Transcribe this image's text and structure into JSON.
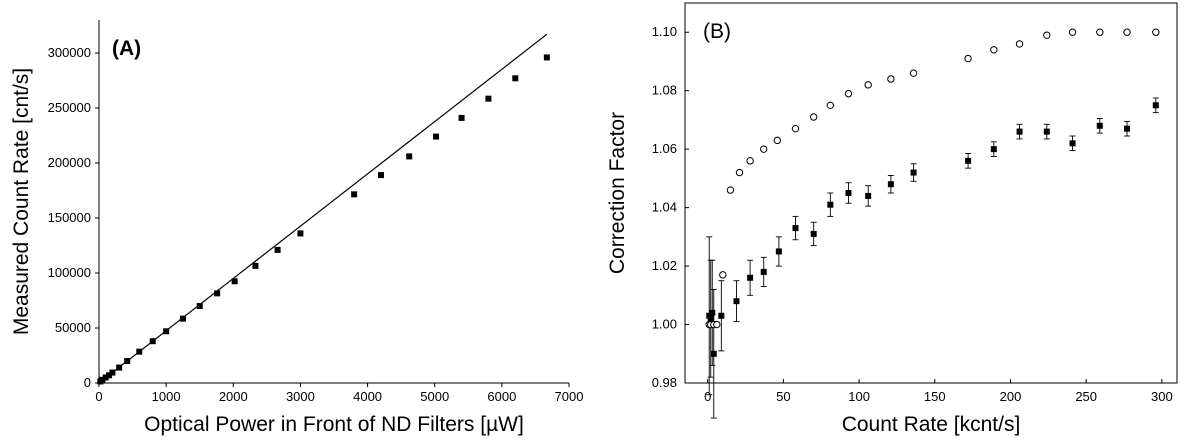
{
  "chart_data": [
    {
      "type": "scatter",
      "panel_label": "(A)",
      "xlabel": "Optical Power in Front of ND Filters [µW]",
      "ylabel": "Measured Count Rate [cnt/s]",
      "xlim": [
        0,
        7000
      ],
      "ylim": [
        0,
        330000
      ],
      "x_ticks": [
        0,
        1000,
        2000,
        3000,
        4000,
        5000,
        6000,
        7000
      ],
      "y_ticks": [
        0,
        50000,
        100000,
        150000,
        200000,
        250000,
        300000
      ],
      "grid": false,
      "series": [
        {
          "marker": "square-filled",
          "color": "#000000",
          "points": [
            [
              20,
              1400
            ],
            [
              50,
              2900
            ],
            [
              100,
              5000
            ],
            [
              150,
              7000
            ],
            [
              200,
              9500
            ],
            [
              300,
              14000
            ],
            [
              420,
              20000
            ],
            [
              600,
              28500
            ],
            [
              800,
              38000
            ],
            [
              1000,
              47000
            ],
            [
              1250,
              58500
            ],
            [
              1500,
              70000
            ],
            [
              1760,
              81500
            ],
            [
              2020,
              92500
            ],
            [
              2330,
              106500
            ],
            [
              2660,
              121000
            ],
            [
              3000,
              136000
            ],
            [
              3800,
              171500
            ],
            [
              4200,
              189000
            ],
            [
              4620,
              206000
            ],
            [
              5020,
              224000
            ],
            [
              5400,
              241000
            ],
            [
              5800,
              258500
            ],
            [
              6200,
              277000
            ],
            [
              6670,
              296000
            ]
          ]
        },
        {
          "type": "line",
          "color": "#000000",
          "points": [
            [
              0,
              0
            ],
            [
              6670,
              317000
            ]
          ]
        }
      ]
    },
    {
      "type": "scatter",
      "panel_label": "(B)",
      "xlabel": "Count Rate [kcnt/s]",
      "ylabel": "Correction Factor",
      "xlim": [
        -15,
        310
      ],
      "ylim": [
        0.98,
        1.11
      ],
      "x_ticks": [
        0,
        50,
        100,
        150,
        200,
        250,
        300
      ],
      "y_ticks": [
        0.98,
        1.0,
        1.02,
        1.04,
        1.06,
        1.08,
        1.1
      ],
      "y_tick_labels": [
        "0.98",
        "1.00",
        "1.02",
        "1.04",
        "1.06",
        "1.08",
        "1.10"
      ],
      "grid": false,
      "series": [
        {
          "marker": "square-filled",
          "color": "#000000",
          "points": [
            {
              "x": 1,
              "y": 1.003,
              "err": 0.027
            },
            {
              "x": 2,
              "y": 1.002,
              "err": 0.02
            },
            {
              "x": 3,
              "y": 1.004,
              "err": 0.018
            },
            {
              "x": 4,
              "y": 0.99,
              "err": 0.022
            },
            {
              "x": 9,
              "y": 1.003,
              "err": 0.012
            },
            {
              "x": 19,
              "y": 1.008,
              "err": 0.007
            },
            {
              "x": 28,
              "y": 1.016,
              "err": 0.006
            },
            {
              "x": 37,
              "y": 1.018,
              "err": 0.005
            },
            {
              "x": 47,
              "y": 1.025,
              "err": 0.005
            },
            {
              "x": 58,
              "y": 1.033,
              "err": 0.004
            },
            {
              "x": 70,
              "y": 1.031,
              "err": 0.004
            },
            {
              "x": 81,
              "y": 1.041,
              "err": 0.004
            },
            {
              "x": 93,
              "y": 1.045,
              "err": 0.0035
            },
            {
              "x": 106,
              "y": 1.044,
              "err": 0.0035
            },
            {
              "x": 121,
              "y": 1.048,
              "err": 0.003
            },
            {
              "x": 136,
              "y": 1.052,
              "err": 0.003
            },
            {
              "x": 172,
              "y": 1.056,
              "err": 0.0025
            },
            {
              "x": 189,
              "y": 1.06,
              "err": 0.0025
            },
            {
              "x": 206,
              "y": 1.066,
              "err": 0.0025
            },
            {
              "x": 224,
              "y": 1.066,
              "err": 0.0025
            },
            {
              "x": 241,
              "y": 1.062,
              "err": 0.0025
            },
            {
              "x": 259,
              "y": 1.068,
              "err": 0.0025
            },
            {
              "x": 277,
              "y": 1.067,
              "err": 0.0025
            },
            {
              "x": 296,
              "y": 1.075,
              "err": 0.0025
            }
          ]
        },
        {
          "marker": "circle-open",
          "color": "#000000",
          "points": [
            [
              1,
              1.0
            ],
            [
              2,
              1.0
            ],
            [
              4,
              1.0
            ],
            [
              6,
              1.0
            ],
            [
              10,
              1.017
            ],
            [
              15,
              1.046
            ],
            [
              21,
              1.052
            ],
            [
              28,
              1.056
            ],
            [
              37,
              1.06
            ],
            [
              46,
              1.063
            ],
            [
              58,
              1.067
            ],
            [
              70,
              1.071
            ],
            [
              81,
              1.075
            ],
            [
              93,
              1.079
            ],
            [
              106,
              1.082
            ],
            [
              121,
              1.084
            ],
            [
              136,
              1.086
            ],
            [
              172,
              1.091
            ],
            [
              189,
              1.094
            ],
            [
              206,
              1.096
            ],
            [
              224,
              1.099
            ],
            [
              241,
              1.1
            ],
            [
              259,
              1.1
            ],
            [
              277,
              1.1
            ],
            [
              296,
              1.1
            ]
          ]
        }
      ]
    }
  ]
}
